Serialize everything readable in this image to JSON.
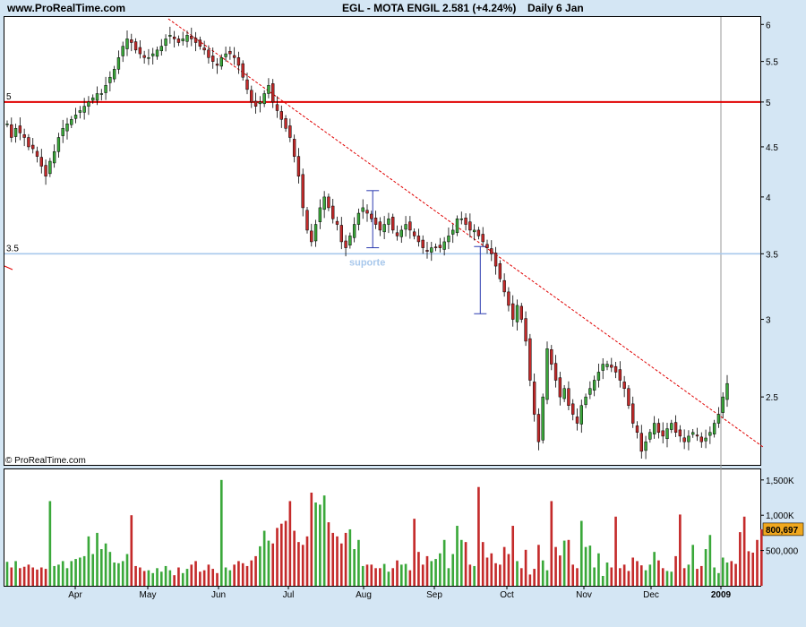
{
  "header": {
    "site": "www.ProRealTime.com",
    "title": "EGL - MOTA ENGIL",
    "price": "2.581 (+4.24%)",
    "period": "Daily  6 Jan"
  },
  "watermark": "© ProRealTime.com",
  "colors": {
    "background": "#d4e6f4",
    "panel": "#ffffff",
    "up": "#3aa83a",
    "down": "#c42a2a",
    "resistance": "#e00000",
    "support": "#a8c8ec",
    "trendline": "#e00000",
    "marker": "#2a3ab0",
    "last_value_badge": "#f0a81e"
  },
  "chart_data": {
    "type": "candlestick",
    "price_axis": {
      "ticks": [
        "6",
        "5.5",
        "5",
        "4.5",
        "4",
        "3.5",
        "3",
        "2.5"
      ],
      "range": [
        2.14,
        6.08
      ],
      "scale": "log"
    },
    "volume_axis": {
      "ticks": [
        "1,500K",
        "1,000K",
        "500,000"
      ],
      "range": [
        0,
        1650000
      ],
      "last_value": "800,697"
    },
    "months": [
      "Apr",
      "May",
      "Jun",
      "Jul",
      "Aug",
      "Sep",
      "Oct",
      "Nov",
      "Dec",
      "2009"
    ],
    "levels": [
      {
        "label": "5",
        "price": 5.0
      },
      {
        "label": "3.5",
        "price": 3.5
      }
    ],
    "annotation": "suporte",
    "trendline": [
      {
        "date": "2008-05-10",
        "price": 6.08
      },
      {
        "date": "2009-01-20",
        "price": 2.22
      }
    ],
    "markers": [
      {
        "date": "2008-08-05",
        "high": 4.06,
        "low": 3.55
      },
      {
        "date": "2008-09-20",
        "high": 3.56,
        "low": 3.04
      }
    ],
    "closes": [
      4.75,
      4.6,
      4.7,
      4.65,
      4.6,
      4.5,
      4.48,
      4.4,
      4.3,
      4.2,
      4.35,
      4.45,
      4.6,
      4.7,
      4.75,
      4.8,
      4.85,
      4.9,
      4.95,
      5.0,
      5.05,
      5.1,
      5.1,
      5.2,
      5.3,
      5.4,
      5.55,
      5.7,
      5.8,
      5.75,
      5.65,
      5.6,
      5.55,
      5.55,
      5.6,
      5.65,
      5.7,
      5.8,
      5.85,
      5.8,
      5.75,
      5.8,
      5.85,
      5.8,
      5.75,
      5.7,
      5.65,
      5.55,
      5.5,
      5.45,
      5.55,
      5.6,
      5.6,
      5.55,
      5.45,
      5.3,
      5.15,
      5.0,
      4.95,
      5.0,
      5.1,
      5.2,
      5.0,
      4.9,
      4.8,
      4.7,
      4.6,
      4.4,
      4.2,
      3.9,
      3.7,
      3.6,
      3.75,
      3.9,
      4.0,
      3.9,
      3.8,
      3.75,
      3.6,
      3.55,
      3.65,
      3.75,
      3.85,
      3.9,
      3.85,
      3.8,
      3.75,
      3.7,
      3.75,
      3.8,
      3.7,
      3.65,
      3.7,
      3.75,
      3.7,
      3.65,
      3.6,
      3.55,
      3.52,
      3.55,
      3.55,
      3.55,
      3.6,
      3.65,
      3.7,
      3.8,
      3.8,
      3.75,
      3.7,
      3.7,
      3.65,
      3.6,
      3.55,
      3.5,
      3.4,
      3.3,
      3.2,
      3.1,
      3.0,
      3.1,
      3.0,
      2.85,
      2.6,
      2.4,
      2.25,
      2.5,
      2.8,
      2.7,
      2.6,
      2.5,
      2.55,
      2.45,
      2.4,
      2.35,
      2.45,
      2.5,
      2.55,
      2.6,
      2.65,
      2.7,
      2.7,
      2.68,
      2.65,
      2.6,
      2.55,
      2.45,
      2.35,
      2.3,
      2.2,
      2.25,
      2.3,
      2.35,
      2.3,
      2.28,
      2.32,
      2.35,
      2.3,
      2.28,
      2.25,
      2.28,
      2.3,
      2.28,
      2.25,
      2.27,
      2.3,
      2.35,
      2.4,
      2.5,
      2.58
    ],
    "volumes": [
      340,
      260,
      350,
      250,
      270,
      300,
      260,
      230,
      260,
      240,
      1200,
      280,
      300,
      350,
      250,
      350,
      380,
      400,
      420,
      700,
      450,
      750,
      520,
      600,
      480,
      330,
      320,
      350,
      450,
      1000,
      280,
      260,
      210,
      220,
      180,
      250,
      200,
      280,
      220,
      150,
      260,
      180,
      240,
      300,
      350,
      200,
      220,
      300,
      240,
      180,
      1500,
      260,
      220,
      300,
      350,
      320,
      280,
      360,
      420,
      560,
      780,
      640,
      600,
      820,
      880,
      920,
      1200,
      780,
      620,
      580,
      700,
      1320,
      1180,
      1150,
      1280,
      900,
      750,
      700,
      600,
      750,
      800,
      520,
      650,
      280,
      300,
      300,
      250,
      250,
      310,
      200,
      250,
      360,
      300,
      310,
      220,
      950,
      480,
      300,
      420,
      350,
      380,
      460,
      650,
      250,
      450,
      850,
      650,
      620,
      300,
      280,
      1400,
      620,
      400,
      460,
      320,
      300,
      550,
      450,
      850,
      350,
      250,
      510,
      160,
      240,
      580,
      360,
      220,
      1200,
      550,
      430,
      640,
      650,
      300,
      250,
      920,
      550,
      570,
      260,
      460,
      140,
      330,
      260,
      980,
      250,
      300,
      210,
      400,
      350,
      290,
      220,
      300,
      480,
      360,
      250,
      210,
      200,
      420,
      1010,
      250,
      300,
      580,
      240,
      280,
      520,
      720,
      260,
      180,
      400,
      330,
      350,
      310,
      760,
      980,
      490,
      470,
      650,
      801
    ]
  }
}
